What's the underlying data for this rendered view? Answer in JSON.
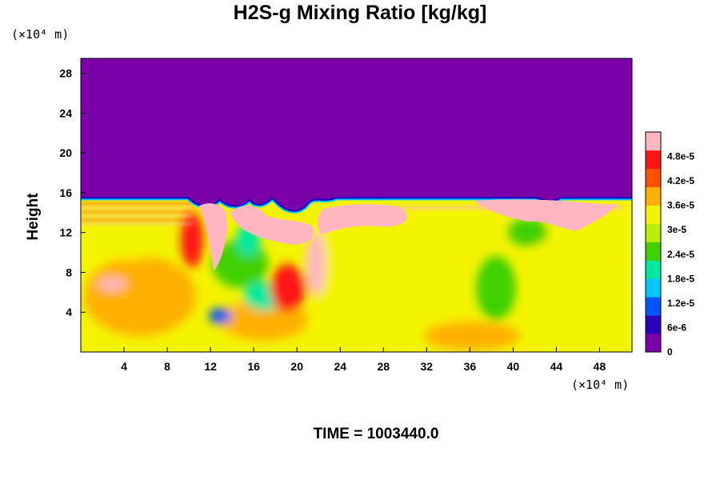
{
  "chart_data": {
    "type": "heatmap",
    "title": "H2S-g Mixing Ratio [kg/kg]",
    "ylabel": "Height",
    "xlabel": "",
    "x_unit": "(×10⁴ m)",
    "y_unit": "(×10⁴ m)",
    "x_ticks": [
      4,
      8,
      12,
      16,
      20,
      24,
      28,
      32,
      36,
      40,
      44,
      48
    ],
    "y_ticks": [
      4,
      8,
      12,
      16,
      20,
      24,
      28
    ],
    "xlim": [
      0,
      51
    ],
    "ylim": [
      0,
      29.5
    ],
    "colorbar": {
      "labels": [
        "0",
        "6e-6",
        "1.2e-5",
        "1.8e-5",
        "2.4e-5",
        "3e-5",
        "3.6e-5",
        "4.2e-5",
        "4.8e-5"
      ],
      "levels": [
        0,
        6e-06,
        1.2e-05,
        1.8e-05,
        2.4e-05,
        3e-05,
        3.6e-05,
        4.2e-05,
        4.8e-05
      ],
      "max": 5.4e-05,
      "colors": [
        "#7a00a8",
        "#2a00c0",
        "#0055ff",
        "#00c8ff",
        "#00e8a0",
        "#40d000",
        "#b8ee00",
        "#f4f400",
        "#ffb000",
        "#ff5000",
        "#ff1414",
        "#ffb6c1"
      ]
    },
    "regions": {
      "upper_layer_value": 0,
      "upper_layer_bottom": 15.6,
      "interface_top_value": 5.4e-05,
      "background_lower_value": 3.5e-05
    }
  },
  "footer": "TIME = 1003440.0"
}
